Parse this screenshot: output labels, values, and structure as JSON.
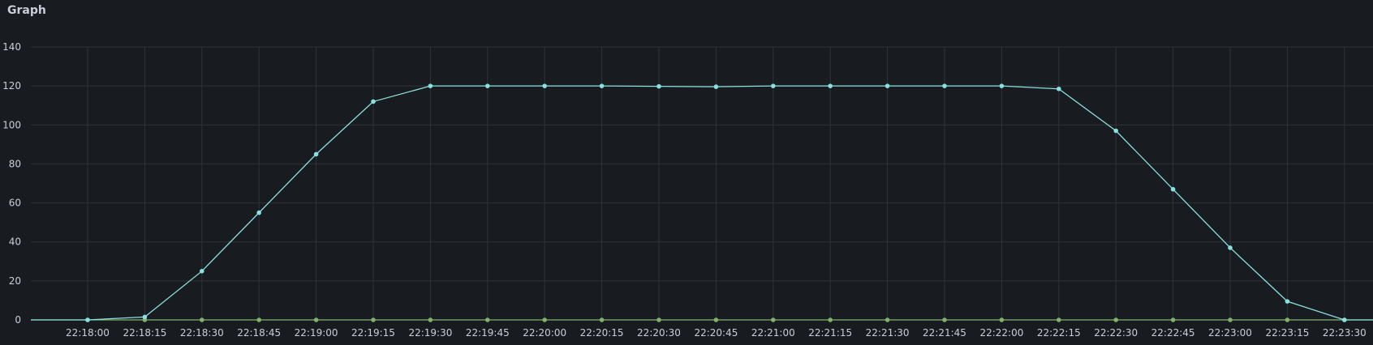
{
  "panel": {
    "title": "Graph"
  },
  "colors": {
    "background": "#181b1f",
    "grid": "#2f3238",
    "text": "#ccccdc",
    "series_a": "#8ae0e0",
    "series_b": "#7eb26d"
  },
  "chart_data": {
    "type": "line",
    "title": "Graph",
    "xlabel": "",
    "ylabel": "",
    "ylim": [
      0,
      140
    ],
    "yticks": [
      0,
      20,
      40,
      60,
      80,
      100,
      120,
      140
    ],
    "x": [
      "22:18:00",
      "22:18:15",
      "22:18:30",
      "22:18:45",
      "22:19:00",
      "22:19:15",
      "22:19:30",
      "22:19:45",
      "22:20:00",
      "22:20:15",
      "22:20:30",
      "22:20:45",
      "22:21:00",
      "22:21:15",
      "22:21:30",
      "22:21:45",
      "22:22:00",
      "22:22:15",
      "22:22:30",
      "22:22:45",
      "22:23:00",
      "22:23:15",
      "22:23:30"
    ],
    "grid": true,
    "legend": "none",
    "series": [
      {
        "color": "#8ae0e0",
        "values": [
          0,
          1.5,
          25,
          55,
          85,
          112,
          120,
          120,
          120,
          120,
          119.8,
          119.6,
          120,
          120,
          120,
          120,
          120,
          118.5,
          97,
          67,
          37,
          9.5,
          0
        ]
      },
      {
        "color": "#7eb26d",
        "values": [
          0,
          0,
          0,
          0,
          0,
          0,
          0,
          0,
          0,
          0,
          0,
          0,
          0,
          0,
          0,
          0,
          0,
          0,
          0,
          0,
          0,
          0,
          0
        ]
      }
    ]
  }
}
